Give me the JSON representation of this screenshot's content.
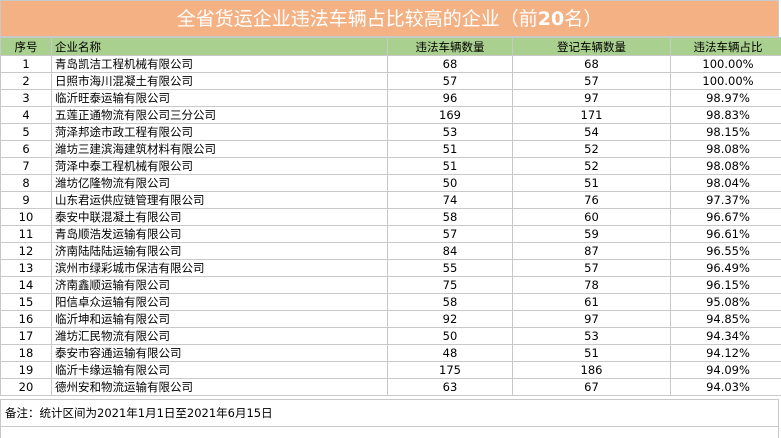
{
  "title": {
    "text": "全省货运企业违法车辆占比较高的企业（前",
    "number": "20",
    "suffix": "名）"
  },
  "table": {
    "headers": [
      "序号",
      "企业名称",
      "违法车辆数量",
      "登记车辆数量",
      "违法车辆占比"
    ],
    "rows": [
      [
        "1",
        "青岛凯洁工程机械有限公司",
        "68",
        "68",
        "100.00%"
      ],
      [
        "2",
        "日照市海川混凝土有限公司",
        "57",
        "57",
        "100.00%"
      ],
      [
        "3",
        "临沂旺泰运输有限公司",
        "96",
        "97",
        "98.97%"
      ],
      [
        "4",
        "五莲正通物流有限公司三分公司",
        "169",
        "171",
        "98.83%"
      ],
      [
        "5",
        "菏泽邦途市政工程有限公司",
        "53",
        "54",
        "98.15%"
      ],
      [
        "6",
        "潍坊三建滨海建筑材料有限公司",
        "51",
        "52",
        "98.08%"
      ],
      [
        "7",
        "菏泽中泰工程机械有限公司",
        "51",
        "52",
        "98.08%"
      ],
      [
        "8",
        "潍坊亿隆物流有限公司",
        "50",
        "51",
        "98.04%"
      ],
      [
        "9",
        "山东君运供应链管理有限公司",
        "74",
        "76",
        "97.37%"
      ],
      [
        "10",
        "泰安中联混凝土有限公司",
        "58",
        "60",
        "96.67%"
      ],
      [
        "11",
        "青岛顺浩发运输有限公司",
        "57",
        "59",
        "96.61%"
      ],
      [
        "12",
        "济南陆陆陆运输有限公司",
        "84",
        "87",
        "96.55%"
      ],
      [
        "13",
        "滨州市绿彩城市保洁有限公司",
        "55",
        "57",
        "96.49%"
      ],
      [
        "14",
        "济南鑫顺运输有限公司",
        "75",
        "78",
        "96.15%"
      ],
      [
        "15",
        "阳信卓众运输有限公司",
        "58",
        "61",
        "95.08%"
      ],
      [
        "16",
        "临沂坤和运输有限公司",
        "92",
        "97",
        "94.85%"
      ],
      [
        "17",
        "潍坊汇民物流有限公司",
        "50",
        "53",
        "94.34%"
      ],
      [
        "18",
        "泰安市容通运输有限公司",
        "48",
        "51",
        "94.12%"
      ],
      [
        "19",
        "临沂卡缘运输有限公司",
        "175",
        "186",
        "94.09%"
      ],
      [
        "20",
        "德州安和物流运输有限公司",
        "63",
        "67",
        "94.03%"
      ]
    ]
  },
  "note": "备注：统计区间为2021年1月1日至2021年6月15日",
  "colors": {
    "title_bg": "#f4b183",
    "header_bg": "#a9d08e",
    "grid": "#c9c9c9"
  }
}
